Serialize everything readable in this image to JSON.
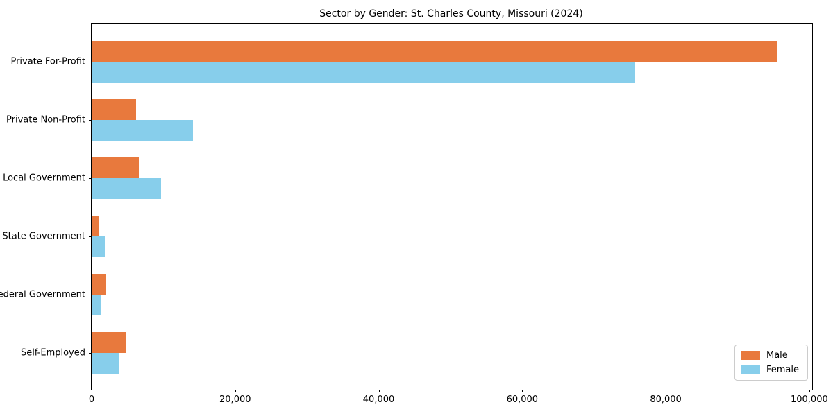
{
  "title": "Sector by Gender: St. Charles County, Missouri (2024)",
  "colors": {
    "male": "#e8793d",
    "female": "#87ceeb",
    "axis": "#000000",
    "legend_border": "#cccccc"
  },
  "chart_data": {
    "type": "bar",
    "orientation": "horizontal",
    "title": "Sector by Gender: St. Charles County, Missouri (2024)",
    "categories": [
      "Private For-Profit",
      "Private Non-Profit",
      "Local Government",
      "State Government",
      "Federal Government",
      "Self-Employed"
    ],
    "series": [
      {
        "name": "Male",
        "color_key": "male",
        "values": [
          95500,
          6200,
          6600,
          1000,
          1900,
          4800
        ]
      },
      {
        "name": "Female",
        "color_key": "female",
        "values": [
          75700,
          14100,
          9700,
          1800,
          1400,
          3800
        ]
      }
    ],
    "xlim": [
      0,
      100400
    ],
    "x_ticks": [
      0,
      20000,
      40000,
      60000,
      80000,
      100000
    ],
    "x_tick_labels": [
      "0",
      "20,000",
      "40,000",
      "60,000",
      "80,000",
      "100,000"
    ],
    "xlabel": "",
    "ylabel": "",
    "grid": false,
    "legend": {
      "position": "lower right",
      "entries": [
        "Male",
        "Female"
      ]
    }
  }
}
